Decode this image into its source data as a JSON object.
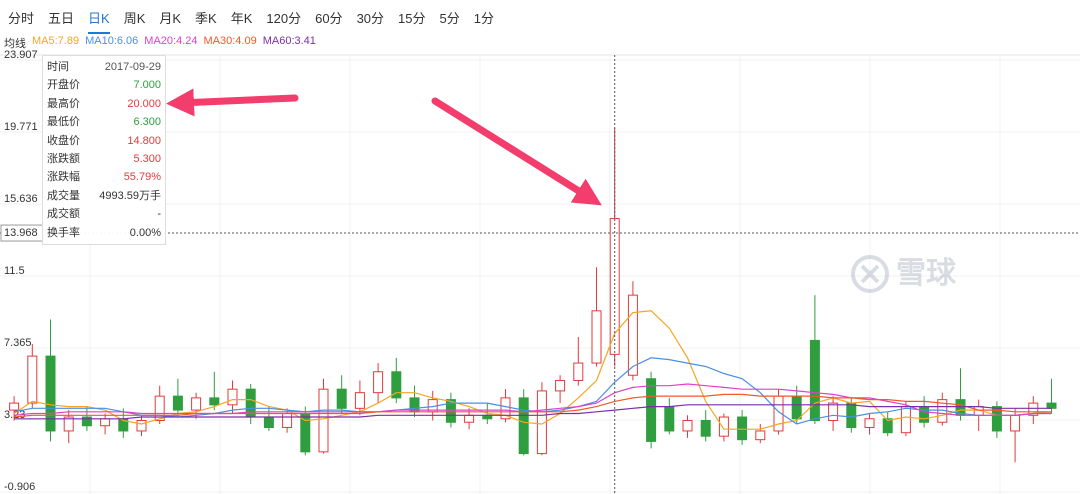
{
  "tabs": {
    "items": [
      "分时",
      "五日",
      "日K",
      "周K",
      "月K",
      "季K",
      "年K",
      "120分",
      "60分",
      "30分",
      "15分",
      "5分",
      "1分"
    ],
    "active": 2
  },
  "watermark": "雪球",
  "tooltip": {
    "rows": [
      {
        "label": "时间",
        "value": "2017-09-29",
        "color": "#555555"
      },
      {
        "label": "开盘价",
        "value": "7.000",
        "color": "#2e9e3e"
      },
      {
        "label": "最高价",
        "value": "20.000",
        "color": "#e23b3b"
      },
      {
        "label": "最低价",
        "value": "6.300",
        "color": "#2e9e3e"
      },
      {
        "label": "收盘价",
        "value": "14.800",
        "color": "#e23b3b"
      },
      {
        "label": "涨跌额",
        "value": "5.300",
        "color": "#e23b3b"
      },
      {
        "label": "涨跌幅",
        "value": "55.79%",
        "color": "#e23b3b"
      },
      {
        "label": "成交量",
        "value": "4993.59万手",
        "color": "#333333"
      },
      {
        "label": "成交额",
        "value": "-",
        "color": "#333333"
      },
      {
        "label": "换手率",
        "value": "0.00%",
        "color": "#333333"
      }
    ]
  },
  "chart_data": {
    "type": "candlestick",
    "ma_label": "均线",
    "ylim": [
      -0.906,
      23.907
    ],
    "yticks": [
      23.907,
      19.771,
      15.636,
      11.5,
      7.365,
      3.23,
      -0.906
    ],
    "ytick_labels_note": null,
    "grid": true,
    "up_color": "#e23b3b",
    "down_color": "#2e9e3e",
    "crosshair": {
      "index": 33,
      "y": 13.968
    },
    "categories": [
      null,
      null,
      null,
      null,
      null,
      null,
      null,
      null,
      null,
      null,
      null,
      null,
      null,
      null,
      null,
      null,
      null,
      null,
      null,
      null,
      null,
      null,
      null,
      null,
      null,
      null,
      null,
      null,
      null,
      null,
      null,
      null,
      null,
      "2017-09-29",
      null,
      null,
      null,
      null,
      null,
      null,
      null,
      null,
      null,
      null,
      null,
      null,
      null,
      null,
      null,
      null,
      null,
      null,
      null,
      null,
      null,
      null,
      null,
      null
    ],
    "open": [
      3.8,
      4.2,
      6.9,
      2.6,
      3.4,
      2.9,
      3.3,
      2.6,
      3.2,
      4.6,
      3.8,
      4.5,
      4.1,
      5.0,
      3.4,
      2.8,
      3.6,
      1.4,
      5.0,
      3.9,
      4.8,
      6.0,
      4.5,
      3.7,
      4.4,
      3.1,
      3.5,
      3.3,
      4.5,
      1.3,
      4.9,
      5.5,
      6.5,
      7.0,
      5.8,
      5.6,
      4.0,
      2.6,
      3.2,
      2.3,
      3.4,
      2.1,
      2.6,
      4.6,
      7.8,
      3.2,
      4.2,
      2.8,
      3.3,
      2.5,
      4.0,
      3.1,
      4.4,
      3.5,
      4.0,
      2.6,
      3.5,
      4.2
    ],
    "high": [
      4.6,
      7.6,
      9.0,
      3.8,
      4.0,
      3.6,
      3.9,
      3.5,
      5.2,
      5.6,
      4.8,
      6.0,
      5.5,
      5.3,
      4.0,
      3.9,
      4.0,
      5.6,
      5.8,
      5.5,
      6.5,
      6.8,
      5.2,
      4.9,
      4.8,
      3.9,
      4.2,
      5.0,
      5.0,
      5.4,
      5.8,
      8.0,
      12.0,
      20.0,
      11.2,
      6.0,
      4.5,
      3.5,
      3.8,
      3.6,
      3.8,
      3.0,
      5.0,
      5.2,
      10.4,
      4.6,
      4.5,
      3.6,
      3.7,
      4.3,
      4.6,
      4.8,
      6.2,
      4.4,
      4.3,
      3.9,
      4.6,
      5.6
    ],
    "low": [
      3.2,
      3.9,
      2.0,
      1.9,
      2.6,
      2.4,
      2.2,
      2.3,
      3.0,
      3.4,
      3.3,
      3.8,
      3.6,
      3.0,
      2.6,
      2.5,
      1.2,
      1.3,
      3.6,
      3.5,
      4.2,
      4.2,
      3.4,
      3.2,
      2.8,
      2.7,
      3.0,
      3.1,
      1.2,
      1.2,
      4.2,
      5.2,
      6.3,
      6.3,
      5.5,
      1.6,
      2.4,
      2.2,
      2.0,
      2.0,
      1.8,
      1.9,
      2.4,
      3.0,
      3.0,
      2.6,
      2.5,
      2.4,
      2.3,
      2.3,
      2.8,
      2.9,
      3.2,
      2.6,
      2.2,
      0.8,
      3.0,
      3.6
    ],
    "close": [
      4.2,
      6.9,
      2.6,
      3.4,
      2.9,
      3.3,
      2.6,
      3.2,
      4.6,
      3.8,
      4.5,
      4.1,
      5.0,
      3.4,
      2.8,
      3.6,
      1.4,
      5.0,
      3.9,
      4.8,
      6.0,
      4.5,
      3.7,
      4.4,
      3.1,
      3.5,
      3.3,
      4.5,
      1.3,
      4.9,
      5.5,
      6.5,
      9.5,
      14.8,
      10.4,
      2.0,
      2.6,
      3.2,
      2.3,
      3.4,
      2.1,
      2.6,
      4.6,
      3.3,
      3.2,
      4.2,
      2.8,
      3.3,
      2.5,
      4.0,
      3.1,
      4.4,
      3.5,
      4.0,
      2.6,
      3.5,
      4.2,
      3.9
    ],
    "series": [
      {
        "name": "MA5:7.89",
        "color": "#f5a623",
        "values": [
          3.6,
          4.3,
          4.1,
          4.0,
          4.0,
          3.8,
          3.2,
          3.0,
          3.3,
          3.6,
          3.7,
          4.0,
          4.4,
          4.4,
          4.0,
          3.8,
          3.2,
          3.3,
          3.5,
          3.7,
          4.2,
          4.8,
          4.8,
          4.5,
          4.3,
          4.0,
          3.6,
          3.5,
          3.1,
          3.0,
          3.6,
          4.5,
          5.5,
          8.2,
          9.4,
          9.5,
          8.5,
          6.8,
          4.3,
          2.7,
          2.7,
          2.7,
          3.0,
          3.2,
          4.2,
          4.5,
          4.2,
          4.3,
          3.2,
          3.4,
          3.3,
          3.5,
          3.8,
          3.8,
          3.5,
          3.5,
          3.6,
          3.7
        ]
      },
      {
        "name": "MA10:6.06",
        "color": "#4a90e2",
        "values": [
          3.7,
          3.9,
          3.9,
          3.9,
          3.9,
          3.9,
          3.7,
          3.5,
          3.5,
          3.4,
          3.5,
          3.6,
          3.8,
          3.9,
          3.9,
          3.8,
          3.7,
          3.8,
          3.8,
          3.7,
          3.7,
          3.8,
          3.9,
          4.0,
          4.2,
          4.2,
          4.2,
          4.0,
          3.8,
          3.7,
          3.8,
          4.0,
          4.3,
          5.4,
          6.3,
          6.8,
          6.7,
          6.5,
          6.3,
          5.9,
          5.6,
          4.8,
          3.7,
          3.0,
          3.3,
          3.5,
          3.4,
          3.6,
          3.7,
          3.9,
          3.8,
          3.8,
          3.6,
          3.5,
          3.5,
          3.5,
          3.6,
          3.6
        ]
      },
      {
        "name": "MA20:4.24",
        "color": "#e040c8",
        "values": [
          3.5,
          3.6,
          3.6,
          3.7,
          3.7,
          3.7,
          3.7,
          3.6,
          3.6,
          3.6,
          3.6,
          3.6,
          3.6,
          3.7,
          3.7,
          3.7,
          3.7,
          3.7,
          3.7,
          3.7,
          3.7,
          3.8,
          3.8,
          3.8,
          3.8,
          3.8,
          3.8,
          3.8,
          3.7,
          3.8,
          3.9,
          4.0,
          4.2,
          4.8,
          5.1,
          5.2,
          5.2,
          5.3,
          5.2,
          5.1,
          5.0,
          5.0,
          5.0,
          4.9,
          4.8,
          4.7,
          4.5,
          4.5,
          4.3,
          4.1,
          3.7,
          3.6,
          3.5,
          3.5,
          3.5,
          3.5,
          3.6,
          3.6
        ]
      },
      {
        "name": "MA30:4.09",
        "color": "#ef5a2a",
        "values": [
          3.4,
          3.5,
          3.5,
          3.5,
          3.5,
          3.5,
          3.5,
          3.5,
          3.5,
          3.5,
          3.6,
          3.6,
          3.6,
          3.6,
          3.6,
          3.6,
          3.6,
          3.6,
          3.6,
          3.6,
          3.7,
          3.7,
          3.7,
          3.7,
          3.7,
          3.7,
          3.7,
          3.7,
          3.7,
          3.7,
          3.7,
          3.8,
          4.0,
          4.3,
          4.5,
          4.6,
          4.6,
          4.6,
          4.6,
          4.7,
          4.7,
          4.6,
          4.6,
          4.6,
          4.6,
          4.5,
          4.5,
          4.4,
          4.4,
          4.3,
          4.3,
          4.2,
          4.1,
          3.8,
          3.8,
          3.7,
          3.7,
          3.7
        ]
      },
      {
        "name": "MA60:3.41",
        "color": "#7b2fa8",
        "values": [
          3.3,
          3.3,
          3.3,
          3.3,
          3.3,
          3.3,
          3.3,
          3.4,
          3.4,
          3.4,
          3.4,
          3.4,
          3.4,
          3.4,
          3.4,
          3.4,
          3.4,
          3.4,
          3.4,
          3.4,
          3.5,
          3.5,
          3.5,
          3.5,
          3.5,
          3.5,
          3.5,
          3.5,
          3.5,
          3.5,
          3.6,
          3.6,
          3.7,
          3.8,
          3.9,
          4.0,
          4.0,
          4.1,
          4.1,
          4.1,
          4.1,
          4.1,
          4.1,
          4.1,
          4.1,
          4.1,
          4.1,
          4.0,
          4.0,
          4.0,
          4.0,
          4.0,
          4.0,
          4.0,
          3.9,
          3.9,
          3.9,
          3.9
        ]
      }
    ]
  }
}
